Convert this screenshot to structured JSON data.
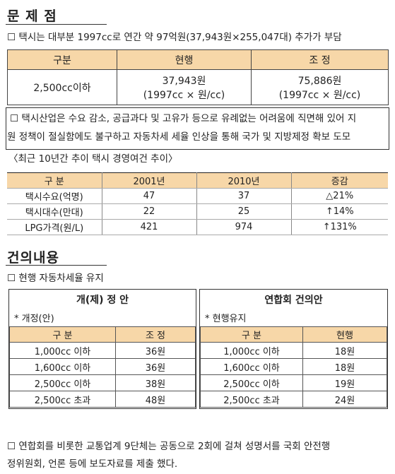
{
  "problem": {
    "title": "문 제 점",
    "bullet1": "☐ 택시는 대부분 1997cc로 연간 약 97억원(37,943원×255,047대) 추가가 부담",
    "table1": {
      "headers": [
        "구분",
        "현행",
        "조 정"
      ],
      "row": {
        "label": "2,500cc이하",
        "current_line1": "37,943원",
        "current_line2": "(1997cc × 원/cc)",
        "adjust_line1": "75,886원",
        "adjust_line2": "(1997cc × 원/cc)"
      }
    },
    "bullet2_line1": "☐ 택시산업은 수요 감소, 공급과다 및 고유가 등으로 유례없는 어려움에 직면해 있어 지",
    "bullet2_line2": "원 정책이 절실함에도 불구하고 자동차세 세율 인상을 통해 국가 및 지방제정 확보 도모",
    "trend_caption": "〈최근 10년간 추이 택시 경영여건 추이〉",
    "table2": {
      "headers": [
        "구 분",
        "2001년",
        "2010년",
        "증감"
      ],
      "rows": [
        [
          "택시수요(억명)",
          "47",
          "37",
          "△21%"
        ],
        [
          "택시대수(만대)",
          "22",
          "25",
          "↑14%"
        ],
        [
          "LPG가격(원/L)",
          "421",
          "974",
          "↑131%"
        ]
      ]
    }
  },
  "proposal": {
    "title": "건의내용",
    "bullet1": "☐ 현행 자동차세율 유지",
    "left": {
      "title": "개(제) 정 안",
      "note": "* 개정(안)",
      "headers": [
        "구 분",
        "조 정"
      ],
      "rows": [
        [
          "1,000cc 이하",
          "36원"
        ],
        [
          "1,600cc 이하",
          "36원"
        ],
        [
          "2,500cc 이하",
          "38원"
        ],
        [
          "2,500cc 초과",
          "48원"
        ]
      ]
    },
    "right": {
      "title": "연합회 건의안",
      "note": "* 현행유지",
      "headers": [
        "구 분",
        "현행"
      ],
      "rows": [
        [
          "1,000cc 이하",
          "18원"
        ],
        [
          "1,600cc 이하",
          "18원"
        ],
        [
          "2,500cc 이하",
          "19원"
        ],
        [
          "2,500cc 초과",
          "24원"
        ]
      ]
    },
    "bullet2_line1": "☐ 연합회를 비롯한 교통업계 9단체는 공동으로 2회에 걸쳐 성명서를 국회 안전행",
    "bullet2_line2": "정위원회, 언론 등에 보도자료를 제출 했다."
  },
  "colors": {
    "header_bg": "#f7d7a8",
    "rule": "#333333"
  }
}
